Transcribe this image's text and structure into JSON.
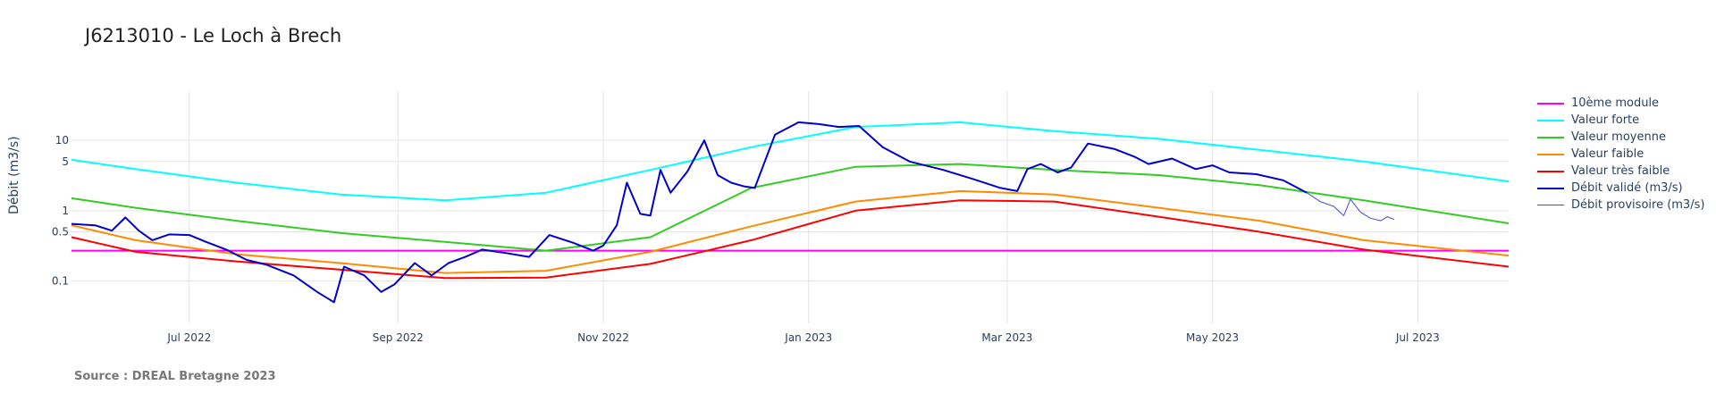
{
  "chart_data": {
    "type": "line",
    "title": "J6213010 - Le Loch à Brech",
    "ylabel": "Débit (m3/s)",
    "y_scale": "log",
    "ylim": [
      0.025,
      50
    ],
    "xlim": [
      "2022-05-27",
      "2023-07-28"
    ],
    "y_ticks": [
      {
        "value": 0.1,
        "label": "0.1"
      },
      {
        "value": 0.5,
        "label": "0.5"
      },
      {
        "value": 1,
        "label": "1"
      },
      {
        "value": 5,
        "label": "5"
      },
      {
        "value": 10,
        "label": "10"
      }
    ],
    "x_ticks": [
      {
        "date": "2022-07-01",
        "label": "Jul 2022"
      },
      {
        "date": "2022-09-01",
        "label": "Sep 2022"
      },
      {
        "date": "2022-11-01",
        "label": "Nov 2022"
      },
      {
        "date": "2023-01-01",
        "label": "Jan 2023"
      },
      {
        "date": "2023-03-01",
        "label": "Mar 2023"
      },
      {
        "date": "2023-05-01",
        "label": "May 2023"
      },
      {
        "date": "2023-07-01",
        "label": "Jul 2023"
      }
    ],
    "grid": true,
    "legend_position": "right",
    "series": [
      {
        "name": "10ème module",
        "color": "#ff00ff",
        "width": 2,
        "x": [
          "2022-05-27",
          "2023-07-28"
        ],
        "y": [
          0.27,
          0.27
        ]
      },
      {
        "name": "Valeur forte",
        "color": "#00ffff",
        "width": 2,
        "x": [
          "2022-05-27",
          "2022-06-15",
          "2022-07-15",
          "2022-08-15",
          "2022-09-15",
          "2022-10-15",
          "2022-11-15",
          "2022-12-15",
          "2023-01-15",
          "2023-02-15",
          "2023-03-15",
          "2023-04-15",
          "2023-05-15",
          "2023-06-15",
          "2023-07-28"
        ],
        "y": [
          5.3,
          3.9,
          2.5,
          1.7,
          1.4,
          1.8,
          3.8,
          8.0,
          15.5,
          18.0,
          13.5,
          10.5,
          7.3,
          5.0,
          2.6
        ]
      },
      {
        "name": "Valeur moyenne",
        "color": "#33cc22",
        "width": 2,
        "x": [
          "2022-05-27",
          "2022-06-15",
          "2022-07-15",
          "2022-08-15",
          "2022-09-15",
          "2022-10-15",
          "2022-11-15",
          "2022-12-15",
          "2023-01-15",
          "2023-02-15",
          "2023-03-15",
          "2023-04-15",
          "2023-05-15",
          "2023-06-15",
          "2023-07-28"
        ],
        "y": [
          1.5,
          1.1,
          0.72,
          0.48,
          0.36,
          0.27,
          0.42,
          2.1,
          4.2,
          4.6,
          3.8,
          3.2,
          2.3,
          1.4,
          0.66
        ]
      },
      {
        "name": "Valeur faible",
        "color": "#ff8c00",
        "width": 2,
        "x": [
          "2022-05-27",
          "2022-06-15",
          "2022-07-15",
          "2022-08-15",
          "2022-09-15",
          "2022-10-15",
          "2022-11-15",
          "2022-12-15",
          "2023-01-15",
          "2023-02-15",
          "2023-03-15",
          "2023-04-15",
          "2023-05-15",
          "2023-06-15",
          "2023-07-28"
        ],
        "y": [
          0.62,
          0.38,
          0.24,
          0.18,
          0.13,
          0.14,
          0.26,
          0.6,
          1.35,
          1.9,
          1.7,
          1.1,
          0.72,
          0.38,
          0.23
        ]
      },
      {
        "name": "Valeur très faible",
        "color": "#ff0000",
        "width": 2,
        "x": [
          "2022-05-27",
          "2022-06-15",
          "2022-07-15",
          "2022-08-15",
          "2022-09-15",
          "2022-10-15",
          "2022-11-15",
          "2022-12-15",
          "2023-01-15",
          "2023-02-15",
          "2023-03-15",
          "2023-04-15",
          "2023-05-15",
          "2023-06-15",
          "2023-07-28"
        ],
        "y": [
          0.42,
          0.26,
          0.19,
          0.145,
          0.11,
          0.112,
          0.175,
          0.38,
          1.0,
          1.4,
          1.35,
          0.82,
          0.5,
          0.28,
          0.16
        ]
      },
      {
        "name": "Débit validé (m3/s)",
        "color": "#0000cc",
        "width": 2,
        "x": [
          "2022-05-27",
          "2022-06-03",
          "2022-06-08",
          "2022-06-12",
          "2022-06-16",
          "2022-06-20",
          "2022-06-25",
          "2022-07-01",
          "2022-07-06",
          "2022-07-12",
          "2022-07-18",
          "2022-07-24",
          "2022-08-01",
          "2022-08-08",
          "2022-08-13",
          "2022-08-16",
          "2022-08-22",
          "2022-08-27",
          "2022-08-31",
          "2022-09-06",
          "2022-09-11",
          "2022-09-16",
          "2022-09-21",
          "2022-09-26",
          "2022-10-03",
          "2022-10-10",
          "2022-10-16",
          "2022-10-23",
          "2022-10-29",
          "2022-11-01",
          "2022-11-05",
          "2022-11-08",
          "2022-11-12",
          "2022-11-15",
          "2022-11-18",
          "2022-11-21",
          "2022-11-26",
          "2022-12-01",
          "2022-12-05",
          "2022-12-09",
          "2022-12-13",
          "2022-12-16",
          "2022-12-22",
          "2022-12-29",
          "2023-01-04",
          "2023-01-10",
          "2023-01-16",
          "2023-01-23",
          "2023-01-31",
          "2023-02-10",
          "2023-02-19",
          "2023-02-27",
          "2023-03-04",
          "2023-03-07",
          "2023-03-11",
          "2023-03-16",
          "2023-03-20",
          "2023-03-25",
          "2023-04-02",
          "2023-04-08",
          "2023-04-12",
          "2023-04-19",
          "2023-04-26",
          "2023-05-01",
          "2023-05-06",
          "2023-05-14",
          "2023-05-22",
          "2023-05-29"
        ],
        "y": [
          0.65,
          0.62,
          0.52,
          0.8,
          0.52,
          0.38,
          0.46,
          0.45,
          0.36,
          0.28,
          0.2,
          0.17,
          0.12,
          0.07,
          0.05,
          0.16,
          0.12,
          0.07,
          0.09,
          0.18,
          0.12,
          0.18,
          0.22,
          0.28,
          0.25,
          0.22,
          0.45,
          0.35,
          0.27,
          0.32,
          0.62,
          2.5,
          0.9,
          0.85,
          3.8,
          1.8,
          3.6,
          10.0,
          3.2,
          2.5,
          2.2,
          2.1,
          12.0,
          18.0,
          17.0,
          15.5,
          16.0,
          8.0,
          5.0,
          3.8,
          2.8,
          2.1,
          1.9,
          3.9,
          4.6,
          3.5,
          4.1,
          9.0,
          7.5,
          5.8,
          4.6,
          5.5,
          3.9,
          4.4,
          3.5,
          3.3,
          2.7,
          1.8
        ]
      },
      {
        "name": "Débit provisoire (m3/s)",
        "color": "#4a4ad6",
        "width": 1,
        "x": [
          "2023-05-29",
          "2023-06-02",
          "2023-06-06",
          "2023-06-09",
          "2023-06-11",
          "2023-06-14",
          "2023-06-17",
          "2023-06-20",
          "2023-06-22",
          "2023-06-24"
        ],
        "y": [
          1.8,
          1.35,
          1.15,
          0.85,
          1.45,
          0.95,
          0.78,
          0.72,
          0.82,
          0.75
        ]
      }
    ]
  },
  "footer": {
    "source": "Source : DREAL Bretagne 2023"
  }
}
